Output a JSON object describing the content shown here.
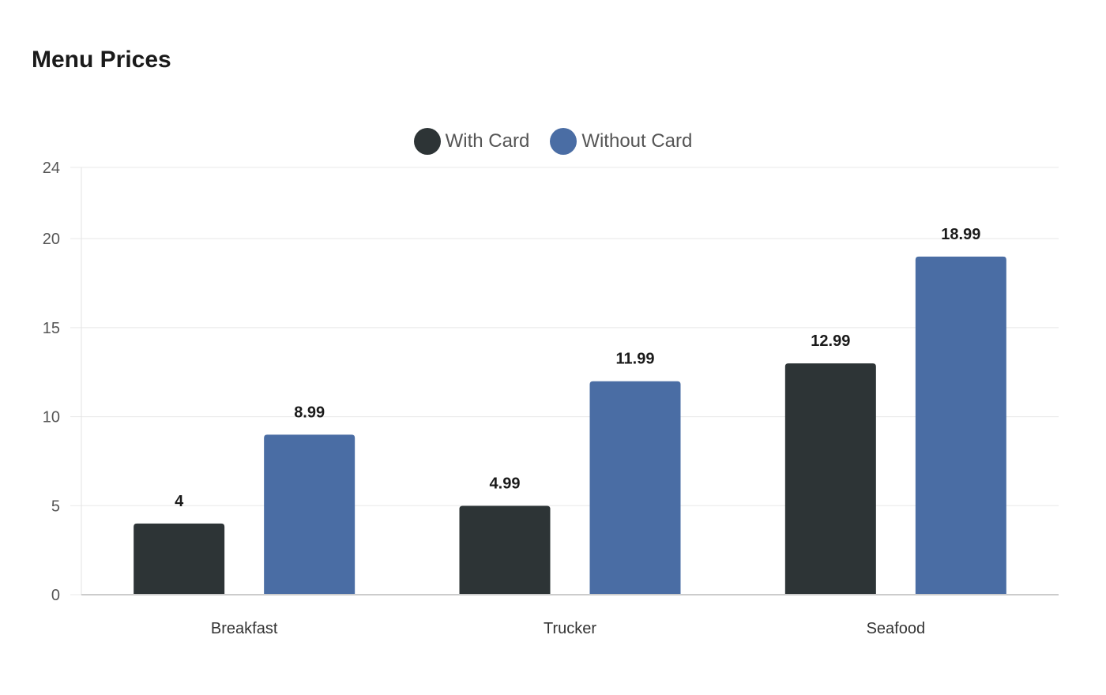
{
  "chart_data": {
    "type": "bar",
    "title": "Menu Prices",
    "xlabel": "",
    "ylabel": "",
    "categories": [
      "Breakfast",
      "Trucker",
      "Seafood"
    ],
    "series": [
      {
        "name": "With Card",
        "color": "#2d3436",
        "values": [
          4,
          4.99,
          12.99
        ]
      },
      {
        "name": "Without Card",
        "color": "#4a6da4",
        "values": [
          8.99,
          11.99,
          18.99
        ]
      }
    ],
    "ylim": [
      0,
      24
    ],
    "yticks": [
      0,
      5,
      10,
      15,
      20,
      24
    ],
    "grid": true,
    "legend_position": "top-center"
  }
}
